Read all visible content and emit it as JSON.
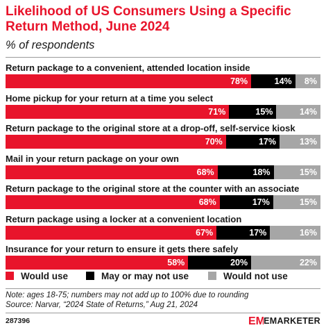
{
  "header": {
    "title": "Likelihood of US Consumers Using a Specific Return Method, June 2024",
    "subtitle": "% of respondents"
  },
  "colors": {
    "accent": "#e8142b",
    "would_use": "#e8142b",
    "may_or_may_not": "#000000",
    "would_not_use": "#a6a6a6"
  },
  "chart_data": {
    "type": "bar",
    "orientation": "horizontal",
    "stacked": true,
    "categories": [
      "Return package to a convenient, attended location inside",
      "Home pickup for your return at a time you select",
      "Return package to the original store at a drop-off, self-service kiosk",
      "Mail in your return package on your own",
      "Return package to the original store at the counter with an associate",
      "Return package using a locker at a convenient location",
      "Insurance for your return to ensure it gets there safely"
    ],
    "series": [
      {
        "name": "Would use",
        "values": [
          78,
          71,
          70,
          68,
          68,
          67,
          58
        ]
      },
      {
        "name": "May or may not use",
        "values": [
          14,
          15,
          17,
          18,
          17,
          17,
          20
        ]
      },
      {
        "name": "Would not use",
        "values": [
          8,
          14,
          13,
          15,
          15,
          16,
          22
        ]
      }
    ],
    "value_suffix": "%",
    "legend_position": "bottom-left",
    "grid": false
  },
  "footer": {
    "note": "Note: ages 18-75; numbers may not add up to 100% due to rounding",
    "source": "Source: Narvar, “2024 State of Returns,” Aug 21, 2024",
    "code": "287396",
    "logo_mark": "EM",
    "logo_text": "EMARKETER"
  }
}
